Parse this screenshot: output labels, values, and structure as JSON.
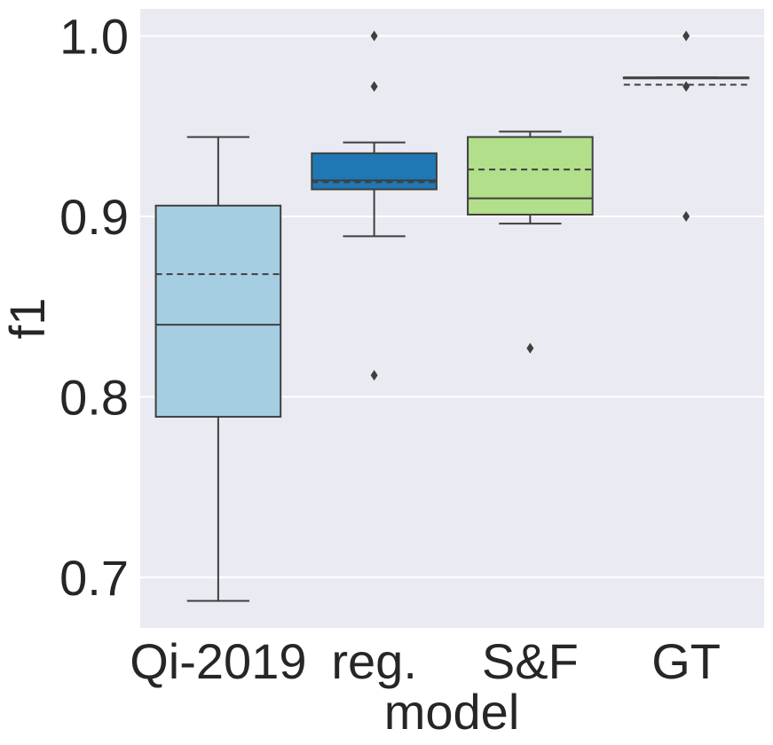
{
  "chart_data": {
    "type": "box",
    "xlabel": "model",
    "ylabel": "f1",
    "ylim": [
      0.672,
      1.015
    ],
    "yticks": [
      0.7,
      0.8,
      0.9,
      1.0
    ],
    "ytick_labels": [
      "0.7",
      "0.8",
      "0.9",
      "1.0"
    ],
    "grid": true,
    "colors": {
      "background": "#eaeaf2",
      "grid": "#ffffff",
      "edge": "#3f3f3f",
      "text": "#262626"
    },
    "categories": [
      "Qi-2019",
      "reg.",
      "S&F",
      "GT"
    ],
    "boxes": [
      {
        "label": "Qi-2019",
        "color": "#a6cee3",
        "whisker_low": 0.687,
        "q1": 0.789,
        "median": 0.84,
        "mean": 0.868,
        "q3": 0.906,
        "whisker_high": 0.944,
        "outliers": []
      },
      {
        "label": "reg.",
        "color": "#1f78b4",
        "whisker_low": 0.889,
        "q1": 0.915,
        "median": 0.92,
        "mean": 0.919,
        "q3": 0.935,
        "whisker_high": 0.941,
        "outliers": [
          1.0,
          0.972,
          0.812
        ]
      },
      {
        "label": "S&F",
        "color": "#b2df8a",
        "whisker_low": 0.896,
        "q1": 0.901,
        "median": 0.91,
        "mean": 0.926,
        "q3": 0.944,
        "whisker_high": 0.947,
        "outliers": [
          0.827
        ]
      },
      {
        "label": "GT",
        "color": "#33a02c",
        "whisker_low": 0.977,
        "q1": 0.977,
        "median": 0.977,
        "mean": 0.973,
        "q3": 0.977,
        "whisker_high": 0.977,
        "outliers": [
          1.0,
          0.972,
          0.9
        ]
      }
    ]
  }
}
